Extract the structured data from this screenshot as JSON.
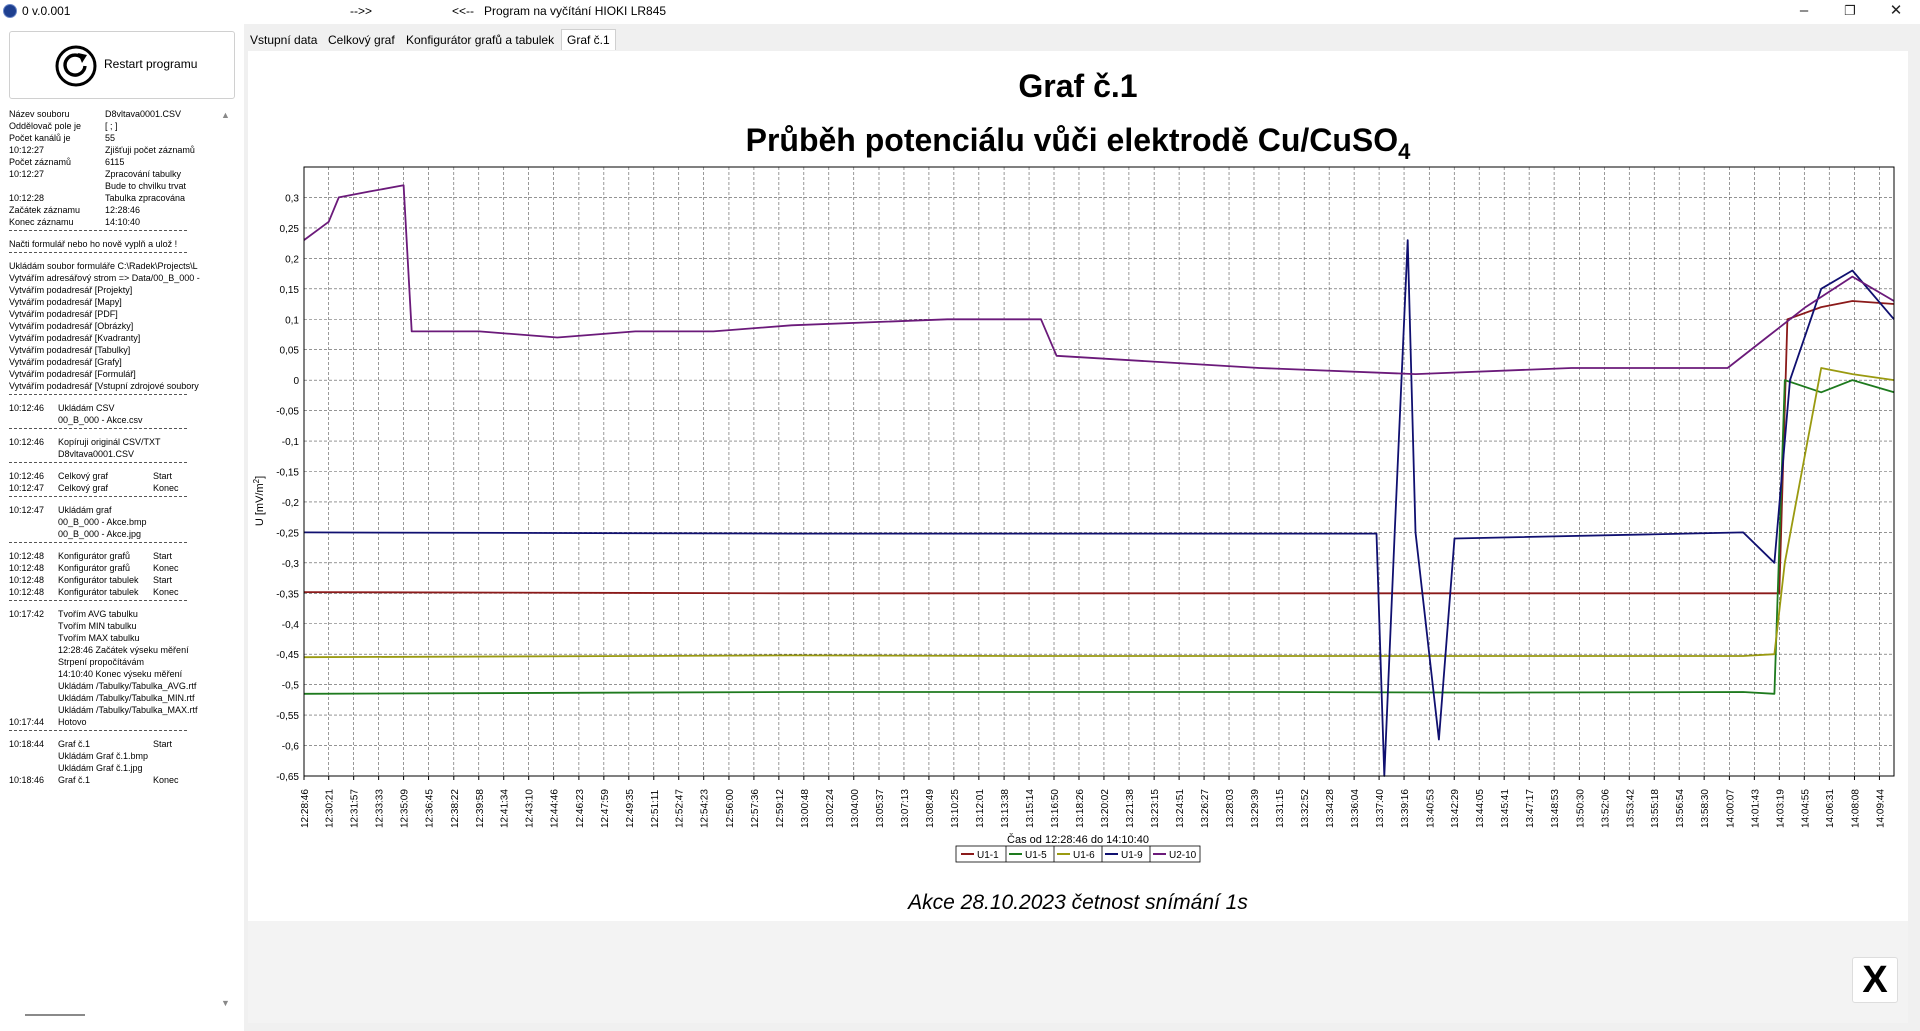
{
  "window": {
    "version": "0 v.0.001",
    "arrow_right": "-->>",
    "arrow_left": "<<--",
    "title": "Program na vyčítání HIOKI LR845",
    "min_glyph": "–",
    "max_glyph": "❐",
    "close_glyph": "✕"
  },
  "sidebar": {
    "restart_label": "Restart programu",
    "log": [
      {
        "type": "row",
        "c1": "Název souboru",
        "c3": "D8vltava0001.CSV"
      },
      {
        "type": "row",
        "c1": "Oddělovač pole je",
        "c3": "[ ; ]"
      },
      {
        "type": "row",
        "c1": "Počet kanálů je",
        "c3": "55"
      },
      {
        "type": "row",
        "c1": "10:12:27",
        "c3": "Zjišťuji počet záznamů"
      },
      {
        "type": "row",
        "c1": "Počet záznamů",
        "c3": "6115"
      },
      {
        "type": "row",
        "c1": "10:12:27",
        "c3": "Zpracování tabulky"
      },
      {
        "type": "row",
        "c1": "",
        "c3": "Bude to chvilku trvat"
      },
      {
        "type": "row",
        "c1": "10:12:28",
        "c3": "Tabulka zpracována"
      },
      {
        "type": "row",
        "c1": "Začátek záznamu",
        "c3": "12:28:46"
      },
      {
        "type": "row",
        "c1": "Konec záznamu",
        "c3": "14:10:40"
      },
      {
        "type": "sep"
      },
      {
        "type": "wide",
        "text": "Načti formulář nebo ho nově vyplň a ulož !"
      },
      {
        "type": "sep"
      },
      {
        "type": "wide",
        "text": "Ukládám soubor formuláře C:\\Radek\\Projects\\L"
      },
      {
        "type": "wide",
        "text": "Vytvářím adresářový strom => Data/00_B_000 -"
      },
      {
        "type": "wide",
        "text": "Vytvářím podadresář [Projekty]"
      },
      {
        "type": "wide",
        "text": "Vytvářím podadresář [Mapy]"
      },
      {
        "type": "wide",
        "text": "Vytvářím podadresář [PDF]"
      },
      {
        "type": "wide",
        "text": "Vytvářím podadresář [Obrázky]"
      },
      {
        "type": "wide",
        "text": "Vytvářím podadresář [Kvadranty]"
      },
      {
        "type": "wide",
        "text": "Vytvářím podadresář [Tabulky]"
      },
      {
        "type": "wide",
        "text": "Vytvářím podadresář [Grafy]"
      },
      {
        "type": "wide",
        "text": "Vytvářím podadresář [Formulář]"
      },
      {
        "type": "wide",
        "text": "Vytvářím podadresář [Vstupní zdrojové soubory"
      },
      {
        "type": "sep"
      },
      {
        "type": "row",
        "c1": "10:12:46",
        "c2": "Ukládám CSV"
      },
      {
        "type": "row",
        "c1": "",
        "c2": "00_B_000 - Akce.csv"
      },
      {
        "type": "sep"
      },
      {
        "type": "row",
        "c1": "10:12:46",
        "c2": "Kopíruji originál CSV/TXT"
      },
      {
        "type": "row",
        "c1": "",
        "c2": "D8vltava0001.CSV"
      },
      {
        "type": "sep"
      },
      {
        "type": "row",
        "c1": "10:12:46",
        "c2": "Celkový graf",
        "c4": "Start"
      },
      {
        "type": "row",
        "c1": "10:12:47",
        "c2": "Celkový graf",
        "c4": "Konec"
      },
      {
        "type": "sep"
      },
      {
        "type": "row",
        "c1": "10:12:47",
        "c2": "Ukládám graf"
      },
      {
        "type": "row",
        "c1": "",
        "c2": "00_B_000 - Akce.bmp"
      },
      {
        "type": "row",
        "c1": "",
        "c2": "00_B_000 - Akce.jpg"
      },
      {
        "type": "sep"
      },
      {
        "type": "row",
        "c1": "10:12:48",
        "c2": "Konfigurátor grafů",
        "c4": "Start"
      },
      {
        "type": "row",
        "c1": "10:12:48",
        "c2": "Konfigurátor grafů",
        "c4": "Konec"
      },
      {
        "type": "row",
        "c1": "10:12:48",
        "c2": "Konfigurátor tabulek",
        "c4": "Start"
      },
      {
        "type": "row",
        "c1": "10:12:48",
        "c2": "Konfigurátor tabulek",
        "c4": "Konec"
      },
      {
        "type": "sep"
      },
      {
        "type": "row",
        "c1": "10:17:42",
        "c2": "Tvořím AVG tabulku"
      },
      {
        "type": "row",
        "c1": "",
        "c2": "Tvořím MIN tabulku"
      },
      {
        "type": "row",
        "c1": "",
        "c2": "Tvořím MAX tabulku"
      },
      {
        "type": "row",
        "c1": "",
        "c2": "12:28:46   Začátek výseku měření"
      },
      {
        "type": "row",
        "c1": "",
        "c2": "                  Strpení propočítávám"
      },
      {
        "type": "row",
        "c1": "",
        "c2": "14:10:40   Konec výseku měření"
      },
      {
        "type": "row",
        "c1": "",
        "c2": "Ukládám /Tabulky/Tabulka_AVG.rtf"
      },
      {
        "type": "row",
        "c1": "",
        "c2": "Ukládám /Tabulky/Tabulka_MIN.rtf"
      },
      {
        "type": "row",
        "c1": "",
        "c2": "Ukládám /Tabulky/Tabulka_MAX.rtf"
      },
      {
        "type": "row",
        "c1": "10:17:44",
        "c2": "Hotovo"
      },
      {
        "type": "sep"
      },
      {
        "type": "row",
        "c1": "10:18:44",
        "c2": "Graf č.1",
        "c4": "Start"
      },
      {
        "type": "row",
        "c1": "",
        "c2": "Ukládám Graf č.1.bmp"
      },
      {
        "type": "row",
        "c1": "",
        "c2": "Ukládám Graf č.1.jpg"
      },
      {
        "type": "row",
        "c1": "10:18:46",
        "c2": "Graf č.1",
        "c4": "Konec"
      }
    ]
  },
  "tabs": [
    {
      "label": "Vstupní data",
      "active": false
    },
    {
      "label": "Celkový graf",
      "active": false
    },
    {
      "label": "Konfigurátor grafů a tabulek",
      "active": false
    },
    {
      "label": "Graf č.1",
      "active": true
    }
  ],
  "close_button_label": "X",
  "chart_data": {
    "type": "line",
    "title": "Graf č.1",
    "subtitle_main": "Průběh potenciálu vůči elektrodě Cu/CuSO",
    "subtitle_sub": "4",
    "ylabel_main": "U [mV/m",
    "ylabel_sup": "2",
    "ylabel_end": "]",
    "xlabel": "Čas od 12:28:46 do 14:10:40",
    "caption": "Akce 28.10.2023 četnost snímání 1s",
    "ylim": [
      -0.65,
      0.35
    ],
    "yticks": [
      "0,3",
      "0,25",
      "0,2",
      "0,15",
      "0,1",
      "0,05",
      "0",
      "-0,05",
      "-0,1",
      "-0,15",
      "-0,2",
      "-0,25",
      "-0,3",
      "-0,35",
      "-0,4",
      "-0,45",
      "-0,5",
      "-0,55",
      "-0,6",
      "-0,65"
    ],
    "grid": true,
    "xstart": "12:28:46",
    "xend": "14:10:40",
    "xticks": [
      "12:28:46",
      "12:30:21",
      "12:31:57",
      "12:33:33",
      "12:35:09",
      "12:36:45",
      "12:38:22",
      "12:39:58",
      "12:41:34",
      "12:43:10",
      "12:44:46",
      "12:46:23",
      "12:47:59",
      "12:49:35",
      "12:51:11",
      "12:52:47",
      "12:54:23",
      "12:56:00",
      "12:57:36",
      "12:59:12",
      "13:00:48",
      "13:02:24",
      "13:04:00",
      "13:05:37",
      "13:07:13",
      "13:08:49",
      "13:10:25",
      "13:12:01",
      "13:13:38",
      "13:15:14",
      "13:16:50",
      "13:18:26",
      "13:20:02",
      "13:21:38",
      "13:23:15",
      "13:24:51",
      "13:26:27",
      "13:28:03",
      "13:29:39",
      "13:31:15",
      "13:32:52",
      "13:34:28",
      "13:36:04",
      "13:37:40",
      "13:39:16",
      "13:40:53",
      "13:42:29",
      "13:44:05",
      "13:45:41",
      "13:47:17",
      "13:48:53",
      "13:50:30",
      "13:52:06",
      "13:53:42",
      "13:55:18",
      "13:56:54",
      "13:58:30",
      "14:00:07",
      "14:01:43",
      "14:03:19",
      "14:04:55",
      "14:06:31",
      "14:08:08",
      "14:09:44"
    ],
    "legend": {
      "placement": "bottom-center",
      "items": [
        "U1-1",
        "U1-5",
        "U1-6",
        "U1-9",
        "U2-10"
      ]
    },
    "series": [
      {
        "name": "U1-1",
        "color": "#8b1a1a",
        "points": [
          [
            "12:28:46",
            -0.348
          ],
          [
            "13:00:00",
            -0.35
          ],
          [
            "13:15:00",
            -0.35
          ],
          [
            "13:30:00",
            -0.35
          ],
          [
            "13:45:00",
            -0.35
          ],
          [
            "14:01:00",
            -0.35
          ],
          [
            "14:03:19",
            -0.35
          ],
          [
            "14:03:50",
            0.1
          ],
          [
            "14:06:00",
            0.12
          ],
          [
            "14:08:00",
            0.13
          ],
          [
            "14:10:40",
            0.125
          ]
        ]
      },
      {
        "name": "U1-5",
        "color": "#1e7a1e",
        "points": [
          [
            "12:28:46",
            -0.515
          ],
          [
            "13:00:00",
            -0.512
          ],
          [
            "13:15:00",
            -0.512
          ],
          [
            "13:30:00",
            -0.512
          ],
          [
            "13:45:00",
            -0.513
          ],
          [
            "14:01:00",
            -0.512
          ],
          [
            "14:03:00",
            -0.515
          ],
          [
            "14:03:40",
            0.0
          ],
          [
            "14:06:00",
            -0.02
          ],
          [
            "14:08:00",
            0.0
          ],
          [
            "14:10:40",
            -0.02
          ]
        ]
      },
      {
        "name": "U1-6",
        "color": "#9a9a10",
        "points": [
          [
            "12:28:46",
            -0.455
          ],
          [
            "13:00:00",
            -0.452
          ],
          [
            "13:15:00",
            -0.453
          ],
          [
            "13:30:00",
            -0.453
          ],
          [
            "13:45:00",
            -0.453
          ],
          [
            "14:01:00",
            -0.453
          ],
          [
            "14:03:00",
            -0.45
          ],
          [
            "14:03:40",
            -0.3
          ],
          [
            "14:06:00",
            0.02
          ],
          [
            "14:08:00",
            0.01
          ],
          [
            "14:10:40",
            0.0
          ]
        ]
      },
      {
        "name": "U1-9",
        "color": "#101070",
        "points": [
          [
            "12:28:46",
            -0.25
          ],
          [
            "13:00:00",
            -0.252
          ],
          [
            "13:15:00",
            -0.252
          ],
          [
            "13:30:00",
            -0.252
          ],
          [
            "13:37:30",
            -0.252
          ],
          [
            "13:38:00",
            -0.65
          ],
          [
            "13:38:40",
            -0.25
          ],
          [
            "13:39:30",
            0.23
          ],
          [
            "13:40:00",
            -0.25
          ],
          [
            "13:41:30",
            -0.59
          ],
          [
            "13:42:30",
            -0.26
          ],
          [
            "14:01:00",
            -0.25
          ],
          [
            "14:03:00",
            -0.3
          ],
          [
            "14:04:00",
            0.0
          ],
          [
            "14:06:00",
            0.15
          ],
          [
            "14:08:00",
            0.18
          ],
          [
            "14:10:40",
            0.1
          ]
        ]
      },
      {
        "name": "U2-10",
        "color": "#6b1a7a",
        "points": [
          [
            "12:28:46",
            0.23
          ],
          [
            "12:30:21",
            0.26
          ],
          [
            "12:31:00",
            0.3
          ],
          [
            "12:33:00",
            0.31
          ],
          [
            "12:35:09",
            0.32
          ],
          [
            "12:35:40",
            0.08
          ],
          [
            "12:40:00",
            0.08
          ],
          [
            "12:45:00",
            0.07
          ],
          [
            "12:50:00",
            0.08
          ],
          [
            "12:55:00",
            0.08
          ],
          [
            "13:00:00",
            0.09
          ],
          [
            "13:10:00",
            0.1
          ],
          [
            "13:16:00",
            0.1
          ],
          [
            "13:17:00",
            0.04
          ],
          [
            "13:30:00",
            0.02
          ],
          [
            "13:40:00",
            0.01
          ],
          [
            "13:50:00",
            0.02
          ],
          [
            "14:00:00",
            0.02
          ],
          [
            "14:02:30",
            0.07
          ],
          [
            "14:05:00",
            0.12
          ],
          [
            "14:08:00",
            0.17
          ],
          [
            "14:10:40",
            0.13
          ]
        ]
      }
    ]
  }
}
